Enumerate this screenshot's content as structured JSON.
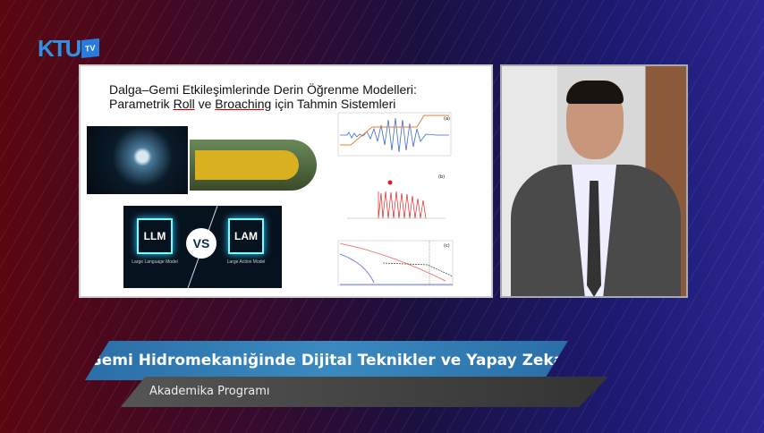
{
  "logo": {
    "text": "KTU",
    "badge": "TV"
  },
  "slide": {
    "title_line1": "Dalga–Gemi Etkileşimlerinde Derin Öğrenme Modelleri:",
    "title_pre": "Parametrik ",
    "title_roll": "Roll",
    "title_mid": " ve ",
    "title_broaching": "Broaching",
    "title_post": " için Tahmin Sistemleri",
    "llm": "LLM",
    "llm_caption": "Large Language Model",
    "vs": "VS",
    "lam": "LAM",
    "lam_caption": "Large Action Model",
    "panels": [
      "(a)",
      "(b)",
      "(c)"
    ]
  },
  "lower_third": {
    "title": "Gemi Hidromekaniğinde Dijital Teknikler ve Yapay Zeka",
    "program": "Akademika Programı"
  },
  "colors": {
    "banner": "#2a6ea8",
    "accent_orange": "#e08030",
    "accent_blue": "#3a6ad0",
    "accent_red": "#e02020"
  }
}
